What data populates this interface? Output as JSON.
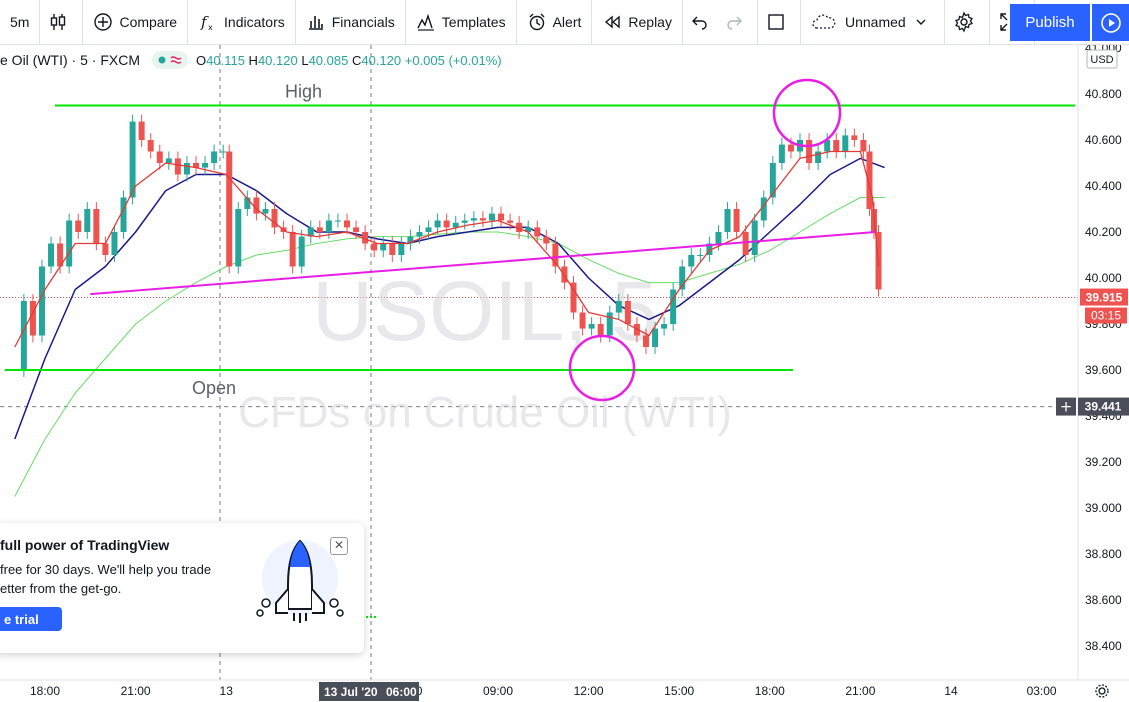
{
  "toolbar": {
    "interval": "5m",
    "compare": "Compare",
    "indicators": "Indicators",
    "financials": "Financials",
    "templates": "Templates",
    "alert": "Alert",
    "replay": "Replay",
    "layout_name": "Unnamed",
    "publish": "Publish"
  },
  "legend": {
    "symbol": "e Oil (WTI) · 5 · FXCM",
    "open_k": "O",
    "open_v": "40.115",
    "high_k": "H",
    "high_v": "40.120",
    "low_k": "L",
    "low_v": "40.085",
    "close_k": "C",
    "close_v": "40.120",
    "change": "+0.005 (+0.01%)"
  },
  "colors": {
    "up": "#26a69a",
    "down": "#ef5350",
    "accent": "#2962ff",
    "annotation_green": "#00e600",
    "annotation_magenta": "#e91ee6",
    "ma_red": "#e53935",
    "ma_navy": "#1a1a8c",
    "ma_green": "#66dd66"
  },
  "chart_data": {
    "type": "line",
    "symbol": "USOIL, 5",
    "watermark_sub": "CFDs on Crude Oil (WTI)",
    "currency": "USD",
    "y_ticks": [
      "41.000",
      "40.800",
      "40.600",
      "40.400",
      "40.200",
      "40.000",
      "39.800",
      "39.600",
      "39.400",
      "39.200",
      "39.000",
      "38.800",
      "38.600",
      "38.400"
    ],
    "ylim": [
      38.3,
      41.0
    ],
    "x_ticks": [
      "18:00",
      "21:00",
      "13",
      "06:00",
      "09:00",
      "12:00",
      "15:00",
      "18:00",
      "21:00",
      "14",
      "03:00"
    ],
    "x_tick_hours": [
      18,
      21,
      24,
      30,
      33,
      36,
      39,
      42,
      45,
      48,
      51
    ],
    "crosshair_date": "13 Jul '20",
    "crosshair_time": "06:00",
    "last_price": "39.915",
    "countdown": "03:15",
    "crosshair_price": "39.441",
    "annotations": {
      "high_label": "High",
      "open_label": "Open",
      "high_level": 40.75,
      "open_level": 39.6
    },
    "price_series": [
      [
        17.0,
        39.6
      ],
      [
        17.3,
        39.9
      ],
      [
        17.6,
        39.75
      ],
      [
        17.9,
        40.05
      ],
      [
        18.2,
        40.15
      ],
      [
        18.5,
        40.05
      ],
      [
        18.8,
        40.25
      ],
      [
        19.1,
        40.2
      ],
      [
        19.4,
        40.3
      ],
      [
        19.7,
        40.15
      ],
      [
        20.0,
        40.1
      ],
      [
        20.3,
        40.2
      ],
      [
        20.6,
        40.35
      ],
      [
        20.9,
        40.68
      ],
      [
        21.2,
        40.6
      ],
      [
        21.5,
        40.55
      ],
      [
        21.8,
        40.5
      ],
      [
        22.1,
        40.52
      ],
      [
        22.4,
        40.45
      ],
      [
        22.7,
        40.5
      ],
      [
        23.0,
        40.48
      ],
      [
        23.3,
        40.5
      ],
      [
        23.6,
        40.55
      ],
      [
        23.9,
        40.55
      ],
      [
        24.1,
        40.05
      ],
      [
        24.4,
        40.3
      ],
      [
        24.7,
        40.35
      ],
      [
        25.0,
        40.28
      ],
      [
        25.3,
        40.3
      ],
      [
        25.6,
        40.22
      ],
      [
        25.9,
        40.2
      ],
      [
        26.2,
        40.05
      ],
      [
        26.5,
        40.18
      ],
      [
        26.8,
        40.22
      ],
      [
        27.1,
        40.2
      ],
      [
        27.4,
        40.25
      ],
      [
        27.7,
        40.25
      ],
      [
        28.0,
        40.22
      ],
      [
        28.3,
        40.2
      ],
      [
        28.6,
        40.15
      ],
      [
        28.9,
        40.12
      ],
      [
        29.2,
        40.15
      ],
      [
        29.5,
        40.1
      ],
      [
        29.8,
        40.15
      ],
      [
        30.1,
        40.18
      ],
      [
        30.4,
        40.2
      ],
      [
        30.7,
        40.22
      ],
      [
        31.0,
        40.25
      ],
      [
        31.3,
        40.22
      ],
      [
        31.6,
        40.24
      ],
      [
        31.9,
        40.25
      ],
      [
        32.2,
        40.26
      ],
      [
        32.5,
        40.25
      ],
      [
        32.8,
        40.28
      ],
      [
        33.1,
        40.25
      ],
      [
        33.4,
        40.24
      ],
      [
        33.7,
        40.2
      ],
      [
        34.0,
        40.22
      ],
      [
        34.3,
        40.18
      ],
      [
        34.6,
        40.15
      ],
      [
        34.9,
        40.05
      ],
      [
        35.2,
        39.98
      ],
      [
        35.5,
        39.85
      ],
      [
        35.8,
        39.78
      ],
      [
        36.1,
        39.8
      ],
      [
        36.4,
        39.75
      ],
      [
        36.7,
        39.85
      ],
      [
        37.0,
        39.9
      ],
      [
        37.3,
        39.8
      ],
      [
        37.6,
        39.75
      ],
      [
        37.9,
        39.7
      ],
      [
        38.2,
        39.78
      ],
      [
        38.5,
        39.8
      ],
      [
        38.8,
        39.95
      ],
      [
        39.1,
        40.05
      ],
      [
        39.4,
        40.1
      ],
      [
        39.7,
        40.1
      ],
      [
        40.0,
        40.15
      ],
      [
        40.3,
        40.2
      ],
      [
        40.6,
        40.3
      ],
      [
        40.9,
        40.2
      ],
      [
        41.2,
        40.1
      ],
      [
        41.5,
        40.25
      ],
      [
        41.8,
        40.35
      ],
      [
        42.1,
        40.5
      ],
      [
        42.4,
        40.58
      ],
      [
        42.7,
        40.55
      ],
      [
        43.0,
        40.6
      ],
      [
        43.3,
        40.5
      ],
      [
        43.6,
        40.55
      ],
      [
        43.9,
        40.6
      ],
      [
        44.2,
        40.55
      ],
      [
        44.5,
        40.62
      ],
      [
        44.8,
        40.6
      ],
      [
        45.1,
        40.55
      ],
      [
        45.3,
        40.3
      ],
      [
        45.45,
        40.2
      ],
      [
        45.6,
        39.95
      ]
    ],
    "ma_fast": [
      [
        17.0,
        39.7
      ],
      [
        18.0,
        39.95
      ],
      [
        19.0,
        40.15
      ],
      [
        20.0,
        40.15
      ],
      [
        21.0,
        40.4
      ],
      [
        22.0,
        40.5
      ],
      [
        23.0,
        40.48
      ],
      [
        24.0,
        40.45
      ],
      [
        25.0,
        40.3
      ],
      [
        26.0,
        40.2
      ],
      [
        27.0,
        40.18
      ],
      [
        28.0,
        40.2
      ],
      [
        29.0,
        40.15
      ],
      [
        30.0,
        40.15
      ],
      [
        31.0,
        40.2
      ],
      [
        32.0,
        40.23
      ],
      [
        33.0,
        40.25
      ],
      [
        34.0,
        40.2
      ],
      [
        35.0,
        40.05
      ],
      [
        36.0,
        39.85
      ],
      [
        37.0,
        39.82
      ],
      [
        38.0,
        39.75
      ],
      [
        39.0,
        39.95
      ],
      [
        40.0,
        40.12
      ],
      [
        41.0,
        40.18
      ],
      [
        42.0,
        40.35
      ],
      [
        43.0,
        40.52
      ],
      [
        44.0,
        40.55
      ],
      [
        45.0,
        40.55
      ],
      [
        45.4,
        40.35
      ],
      [
        45.6,
        40.05
      ]
    ],
    "ma_mid": [
      [
        17.0,
        39.3
      ],
      [
        18.0,
        39.65
      ],
      [
        19.0,
        39.95
      ],
      [
        20.0,
        40.05
      ],
      [
        21.0,
        40.2
      ],
      [
        22.0,
        40.38
      ],
      [
        23.0,
        40.45
      ],
      [
        24.0,
        40.45
      ],
      [
        25.0,
        40.38
      ],
      [
        26.0,
        40.28
      ],
      [
        27.0,
        40.2
      ],
      [
        28.0,
        40.2
      ],
      [
        29.0,
        40.17
      ],
      [
        30.0,
        40.15
      ],
      [
        31.0,
        40.18
      ],
      [
        32.0,
        40.2
      ],
      [
        33.0,
        40.22
      ],
      [
        34.0,
        40.22
      ],
      [
        35.0,
        40.15
      ],
      [
        36.0,
        40.0
      ],
      [
        37.0,
        39.88
      ],
      [
        38.0,
        39.82
      ],
      [
        39.0,
        39.88
      ],
      [
        40.0,
        39.98
      ],
      [
        41.0,
        40.08
      ],
      [
        42.0,
        40.2
      ],
      [
        43.0,
        40.32
      ],
      [
        44.0,
        40.45
      ],
      [
        45.0,
        40.52
      ],
      [
        45.8,
        40.48
      ]
    ],
    "ma_slow": [
      [
        17.0,
        39.05
      ],
      [
        18.0,
        39.3
      ],
      [
        19.0,
        39.5
      ],
      [
        20.0,
        39.65
      ],
      [
        21.0,
        39.8
      ],
      [
        22.0,
        39.9
      ],
      [
        23.0,
        39.98
      ],
      [
        24.0,
        40.05
      ],
      [
        25.0,
        40.1
      ],
      [
        26.0,
        40.12
      ],
      [
        27.0,
        40.15
      ],
      [
        28.0,
        40.17
      ],
      [
        29.0,
        40.18
      ],
      [
        30.0,
        40.18
      ],
      [
        31.0,
        40.19
      ],
      [
        32.0,
        40.2
      ],
      [
        33.0,
        40.2
      ],
      [
        34.0,
        40.18
      ],
      [
        35.0,
        40.15
      ],
      [
        36.0,
        40.08
      ],
      [
        37.0,
        40.02
      ],
      [
        38.0,
        39.98
      ],
      [
        39.0,
        39.98
      ],
      [
        40.0,
        40.02
      ],
      [
        41.0,
        40.06
      ],
      [
        42.0,
        40.12
      ],
      [
        43.0,
        40.2
      ],
      [
        44.0,
        40.28
      ],
      [
        45.0,
        40.35
      ],
      [
        45.8,
        40.35
      ]
    ],
    "trendline": [
      [
        19.5,
        39.93
      ],
      [
        45.5,
        40.2
      ]
    ]
  },
  "promo": {
    "title": "full power of TradingView",
    "line1": "free for 30 days. We'll help you trade",
    "line2": "etter from the get-go.",
    "button": "e trial"
  }
}
